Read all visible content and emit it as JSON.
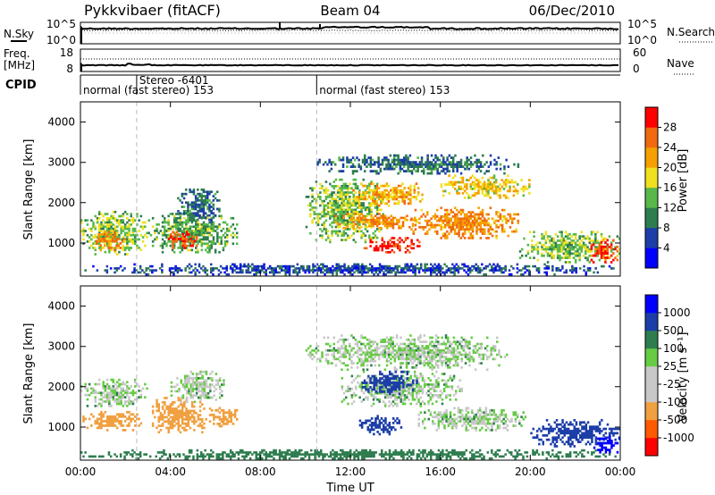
{
  "header": {
    "radar_name": "Pykkvibaer (fitACF)",
    "beam": "Beam 04",
    "date": "06/Dec/2010"
  },
  "noise_panel": {
    "left_label": "N.Sky",
    "right_label": "N.Search",
    "tick_top": "10^5",
    "tick_bottom": "10^0"
  },
  "freq_panel": {
    "left_label": "Freq.",
    "left_unit": "[MHz]",
    "left_tick_top": "18",
    "left_tick_bottom": "8",
    "right_label": "Nave",
    "right_tick_top": "60",
    "right_tick_bottom": "0"
  },
  "cpid_panel": {
    "label": "CPID",
    "segments": [
      {
        "start_hour": 0.0,
        "text": "normal (fast stereo) 153"
      },
      {
        "start_hour": 2.5,
        "text": "Stereo -6401"
      },
      {
        "start_hour": 10.5,
        "text": "normal (fast stereo) 153"
      }
    ]
  },
  "colors": {
    "power_scale": [
      "#0000ff",
      "#1c3ea8",
      "#2e7d4f",
      "#58b84a",
      "#f0e020",
      "#f5a000",
      "#f06a10",
      "#ff0000"
    ],
    "velocity_scale": [
      "#ff0000",
      "#ff5a00",
      "#f0a040",
      "#c8c8c8",
      "#c8c8c8",
      "#66cc44",
      "#2e7d4f",
      "#1c3ea8",
      "#0000ff"
    ]
  },
  "chart_data": [
    {
      "type": "heatmap",
      "panel": "power",
      "ylabel": "Slant Range [km]",
      "ylim": [
        180,
        4500
      ],
      "xlim": [
        0,
        24
      ],
      "yticks": [
        "1000",
        "2000",
        "3000",
        "4000"
      ],
      "colorbar": {
        "label": "Power [dB]",
        "ticks": [
          "4",
          "8",
          "12",
          "16",
          "20",
          "24",
          "28"
        ],
        "range": [
          0,
          30
        ]
      },
      "regions": [
        {
          "t0": 0.0,
          "t1": 3.0,
          "r0": 700,
          "r1": 1800,
          "value": 14
        },
        {
          "t0": 0.5,
          "t1": 2.0,
          "r0": 800,
          "r1": 1300,
          "value": 22
        },
        {
          "t0": 3.0,
          "t1": 7.0,
          "r0": 750,
          "r1": 1750,
          "value": 12
        },
        {
          "t0": 3.8,
          "t1": 5.3,
          "r0": 850,
          "r1": 1300,
          "value": 26
        },
        {
          "t0": 4.3,
          "t1": 6.3,
          "r0": 1500,
          "r1": 2350,
          "value": 8
        },
        {
          "t0": 10.0,
          "t1": 13.5,
          "r0": 1000,
          "r1": 2600,
          "value": 14
        },
        {
          "t0": 11.3,
          "t1": 15.0,
          "r0": 1350,
          "r1": 1750,
          "value": 22
        },
        {
          "t0": 12.0,
          "t1": 15.5,
          "r0": 1900,
          "r1": 2500,
          "value": 20
        },
        {
          "t0": 12.5,
          "t1": 15.2,
          "r0": 750,
          "r1": 1150,
          "value": 28
        },
        {
          "t0": 14.5,
          "t1": 19.5,
          "r0": 1100,
          "r1": 1900,
          "value": 22
        },
        {
          "t0": 16.0,
          "t1": 20.0,
          "r0": 2100,
          "r1": 2700,
          "value": 18
        },
        {
          "t0": 10.5,
          "t1": 19.5,
          "r0": 2700,
          "r1": 3200,
          "value": 8
        },
        {
          "t0": 19.5,
          "t1": 24.0,
          "r0": 500,
          "r1": 1300,
          "value": 14
        },
        {
          "t0": 22.5,
          "t1": 24.0,
          "r0": 500,
          "r1": 1100,
          "value": 26
        },
        {
          "t0": 0.0,
          "t1": 24.0,
          "r0": 200,
          "r1": 500,
          "value": 6
        }
      ]
    },
    {
      "type": "heatmap",
      "panel": "velocity",
      "ylabel": "Slant Range [km]",
      "xlabel": "Time UT",
      "ylim": [
        180,
        4500
      ],
      "xlim": [
        0,
        24
      ],
      "yticks": [
        "1000",
        "2000",
        "3000",
        "4000"
      ],
      "xticks": [
        "00:00",
        "04:00",
        "08:00",
        "12:00",
        "16:00",
        "20:00",
        "00:00"
      ],
      "colorbar": {
        "label": "Velocity [m s⁻¹]",
        "ticks": [
          "1000",
          "500",
          "100",
          "25",
          "-25",
          "-100",
          "-500",
          "-1000"
        ],
        "range": [
          -1200,
          1200
        ]
      },
      "regions": [
        {
          "t0": 0.0,
          "t1": 3.0,
          "r0": 1500,
          "r1": 2200,
          "value": 0
        },
        {
          "t0": 0.0,
          "t1": 3.0,
          "r0": 900,
          "r1": 1400,
          "value": -350
        },
        {
          "t0": 3.0,
          "t1": 5.8,
          "r0": 850,
          "r1": 1750,
          "value": -400
        },
        {
          "t0": 5.8,
          "t1": 7.0,
          "r0": 1000,
          "r1": 1500,
          "value": -250
        },
        {
          "t0": 4.0,
          "t1": 6.5,
          "r0": 1600,
          "r1": 2400,
          "value": 0
        },
        {
          "t0": 10.0,
          "t1": 19.0,
          "r0": 2400,
          "r1": 3300,
          "value": 0
        },
        {
          "t0": 11.5,
          "t1": 17.0,
          "r0": 1500,
          "r1": 2400,
          "value": 0
        },
        {
          "t0": 12.5,
          "t1": 15.0,
          "r0": 1800,
          "r1": 2400,
          "value": 300
        },
        {
          "t0": 12.3,
          "t1": 14.3,
          "r0": 800,
          "r1": 1300,
          "value": 450
        },
        {
          "t0": 15.0,
          "t1": 20.0,
          "r0": 900,
          "r1": 1500,
          "value": 0
        },
        {
          "t0": 20.0,
          "t1": 24.0,
          "r0": 500,
          "r1": 1200,
          "value": 300
        },
        {
          "t0": 22.8,
          "t1": 24.0,
          "r0": 350,
          "r1": 800,
          "value": 700
        },
        {
          "t0": 0.0,
          "t1": 24.0,
          "r0": 200,
          "r1": 450,
          "value": 60
        }
      ]
    }
  ]
}
